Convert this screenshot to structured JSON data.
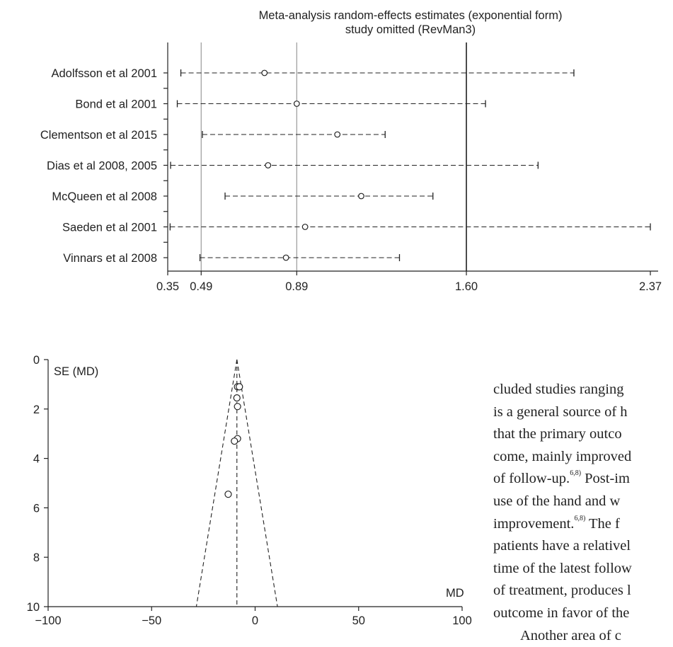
{
  "chart_data": [
    {
      "type": "forest",
      "title": "Meta-analysis random-effects estimates (exponential form)",
      "subtitle": "study omitted (RevMan3)",
      "xlim": [
        0.35,
        2.37
      ],
      "x_ticks": [
        "0.35",
        "0.49",
        "0.89",
        "1.60",
        "2.37"
      ],
      "reference_lines": [
        0.49,
        0.89,
        1.6
      ],
      "studies": [
        {
          "name": "Adolfsson et al 2001",
          "estimate": 0.755,
          "lower": 0.405,
          "upper": 2.05
        },
        {
          "name": "Bond et al 2001",
          "estimate": 0.89,
          "lower": 0.39,
          "upper": 1.68
        },
        {
          "name": "Clementson et al 2015",
          "estimate": 1.06,
          "lower": 0.495,
          "upper": 1.26
        },
        {
          "name": "Dias et al 2008, 2005",
          "estimate": 0.77,
          "lower": 0.362,
          "upper": 1.9
        },
        {
          "name": "McQueen et al 2008",
          "estimate": 1.16,
          "lower": 0.59,
          "upper": 1.46
        },
        {
          "name": "Saeden et al 2001",
          "estimate": 0.925,
          "lower": 0.36,
          "upper": 2.37
        },
        {
          "name": "Vinnars et al 2008",
          "estimate": 0.845,
          "lower": 0.485,
          "upper": 1.32
        }
      ]
    },
    {
      "type": "scatter",
      "subtype": "funnel",
      "ylabel": "SE (MD)",
      "xlabel": "MD",
      "xlim": [
        -100,
        100
      ],
      "ylim": [
        0,
        10
      ],
      "y_inverted": true,
      "x_ticks": [
        "−100",
        "−50",
        "0",
        "50",
        "100"
      ],
      "y_ticks": [
        "0",
        "2",
        "4",
        "6",
        "8",
        "10"
      ],
      "center_line": -8.8,
      "funnel": {
        "apex": [
          -8.8,
          0
        ],
        "base_left": [
          -28.4,
          10
        ],
        "base_right": [
          10.8,
          10
        ]
      },
      "points": [
        {
          "x": -8.5,
          "y": 1.1
        },
        {
          "x": -7.6,
          "y": 1.1
        },
        {
          "x": -8.8,
          "y": 1.55
        },
        {
          "x": -8.5,
          "y": 1.9
        },
        {
          "x": -8.5,
          "y": 3.2
        },
        {
          "x": -10.0,
          "y": 3.3
        },
        {
          "x": -13.0,
          "y": 5.45
        }
      ]
    }
  ],
  "body_text": {
    "lines": [
      "cluded studies ranging",
      "is a general source of h",
      "that the primary outco",
      "come, mainly improved",
      "of follow-up.",
      " Post-im",
      "use of the hand and w",
      "improvement.",
      " The f",
      "patients have a relativel",
      "time of the latest follow",
      "of treatment, produces l",
      "outcome in favor of the",
      "Another area of c"
    ],
    "refs": [
      "6,8)",
      "6,8)"
    ]
  }
}
